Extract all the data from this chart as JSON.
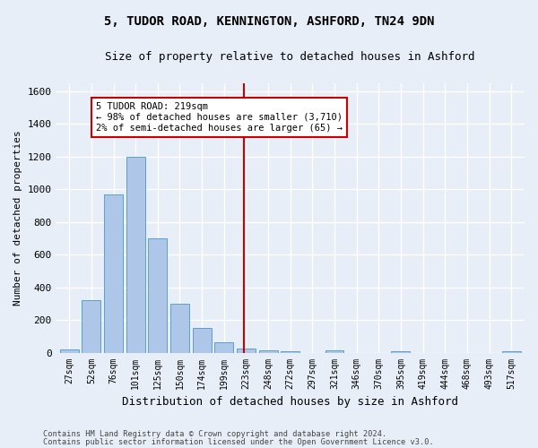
{
  "title1": "5, TUDOR ROAD, KENNINGTON, ASHFORD, TN24 9DN",
  "title2": "Size of property relative to detached houses in Ashford",
  "xlabel": "Distribution of detached houses by size in Ashford",
  "ylabel": "Number of detached properties",
  "bar_labels": [
    "27sqm",
    "52sqm",
    "76sqm",
    "101sqm",
    "125sqm",
    "150sqm",
    "174sqm",
    "199sqm",
    "223sqm",
    "248sqm",
    "272sqm",
    "297sqm",
    "321sqm",
    "346sqm",
    "370sqm",
    "395sqm",
    "419sqm",
    "444sqm",
    "468sqm",
    "493sqm",
    "517sqm"
  ],
  "bar_values": [
    20,
    320,
    970,
    1200,
    700,
    300,
    150,
    65,
    25,
    15,
    10,
    0,
    15,
    0,
    0,
    10,
    0,
    0,
    0,
    0,
    10
  ],
  "bar_color": "#aec6e8",
  "bar_edgecolor": "#5a9fd4",
  "bg_color": "#e8eef7",
  "grid_color": "#ffffff",
  "vline_color": "#cc0000",
  "annotation_text": "5 TUDOR ROAD: 219sqm\n← 98% of detached houses are smaller (3,710)\n2% of semi-detached houses are larger (65) →",
  "annotation_box_color": "#cc0000",
  "ylim": [
    0,
    1650
  ],
  "yticks": [
    0,
    200,
    400,
    600,
    800,
    1000,
    1200,
    1400,
    1600
  ],
  "footer1": "Contains HM Land Registry data © Crown copyright and database right 2024.",
  "footer2": "Contains public sector information licensed under the Open Government Licence v3.0."
}
